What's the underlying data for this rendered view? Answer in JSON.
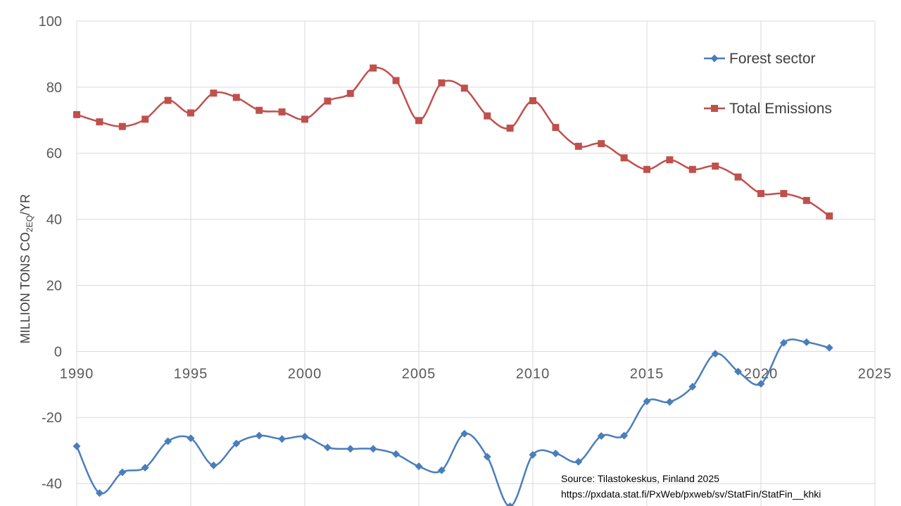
{
  "chart_data": {
    "type": "line",
    "title": "",
    "xlabel": "",
    "ylabel": "MILLION TONS CO",
    "ylabel_sub": "2EQ",
    "ylabel_suffix": "/YR",
    "xlim": [
      1990,
      2025
    ],
    "ylim": [
      -50,
      100
    ],
    "x_ticks": [
      1990,
      1995,
      2000,
      2005,
      2010,
      2015,
      2020,
      2025
    ],
    "y_ticks": [
      -40,
      -20,
      0,
      20,
      40,
      60,
      80,
      100
    ],
    "grid": true,
    "smoothed": true,
    "legend_position": "top-right",
    "series": [
      {
        "name": "Forest sector",
        "color": "#4A7EBB",
        "marker": "diamond",
        "x": [
          1990,
          1991,
          1992,
          1993,
          1994,
          1995,
          1996,
          1997,
          1998,
          1999,
          2000,
          2001,
          2002,
          2003,
          2004,
          2005,
          2006,
          2007,
          2008,
          2009,
          2010,
          2011,
          2012,
          2013,
          2014,
          2015,
          2016,
          2017,
          2018,
          2019,
          2020,
          2021,
          2022,
          2023
        ],
        "values": [
          -28.7,
          -42.9,
          -36.6,
          -35.2,
          -27.2,
          -26.3,
          -34.5,
          -27.9,
          -25.5,
          -26.5,
          -25.8,
          -29.1,
          -29.5,
          -29.5,
          -31.1,
          -34.8,
          -36.0,
          -24.9,
          -31.9,
          -46.9,
          -31.3,
          -30.9,
          -33.4,
          -25.6,
          -25.5,
          -15.1,
          -15.3,
          -10.7,
          -0.7,
          -6.1,
          -9.8,
          2.6,
          2.8,
          1.1
        ]
      },
      {
        "name": "Total Emissions",
        "color": "#C0504D",
        "marker": "square",
        "x": [
          1990,
          1991,
          1992,
          1993,
          1994,
          1995,
          1996,
          1997,
          1998,
          1999,
          2000,
          2001,
          2002,
          2003,
          2004,
          2005,
          2006,
          2007,
          2008,
          2009,
          2010,
          2011,
          2012,
          2013,
          2014,
          2015,
          2016,
          2017,
          2018,
          2019,
          2020,
          2021,
          2022,
          2023
        ],
        "values": [
          71.7,
          69.5,
          68.1,
          70.3,
          76.0,
          72.2,
          78.2,
          76.9,
          73.0,
          72.5,
          70.3,
          75.8,
          78.1,
          85.8,
          82.0,
          69.9,
          81.3,
          79.7,
          71.3,
          67.6,
          75.9,
          67.8,
          62.1,
          62.9,
          58.6,
          55.1,
          58.0,
          55.1,
          56.1,
          52.8,
          47.8,
          47.8,
          45.7,
          41.0
        ]
      }
    ]
  },
  "notes": {
    "source_line": "Source: Tilastokeskus, Finland 2025",
    "url_line": "https://pxdata.stat.fi/PxWeb/pxweb/sv/StatFin/StatFin__khki"
  }
}
